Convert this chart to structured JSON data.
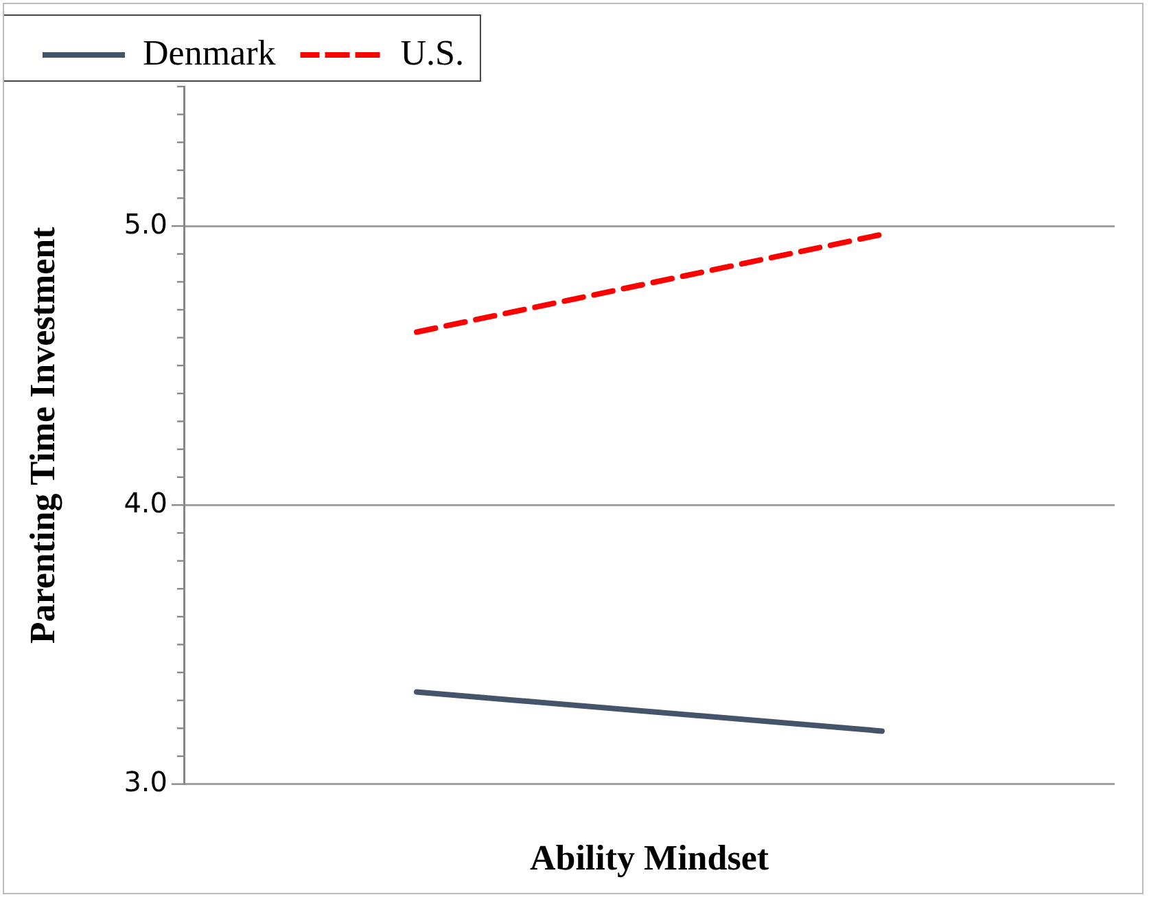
{
  "chart_data": {
    "type": "line",
    "xlabel": "Ability Mindset",
    "ylabel": "Parenting Time Investment",
    "categories": [
      null,
      null
    ],
    "series": [
      {
        "name": "Denmark",
        "color": "#44546a",
        "values": [
          3.33,
          3.19
        ],
        "line_style": "solid"
      },
      {
        "name": "U.S.",
        "color": "#ff0000",
        "values": [
          4.62,
          4.97
        ],
        "line_style": "dashed"
      }
    ],
    "ylim": [
      3,
      5.5
    ],
    "yticks": [
      {
        "value": 3,
        "label": "3.0"
      },
      {
        "value": 3.1,
        "label": null
      },
      {
        "value": 3.2,
        "label": null
      },
      {
        "value": 3.3,
        "label": null
      },
      {
        "value": 3.4,
        "label": null
      },
      {
        "value": 3.5,
        "label": null
      },
      {
        "value": 3.6,
        "label": null
      },
      {
        "value": 3.7,
        "label": null
      },
      {
        "value": 3.8,
        "label": null
      },
      {
        "value": 3.9,
        "label": null
      },
      {
        "value": 4,
        "label": "4.0"
      },
      {
        "value": 4.1,
        "label": null
      },
      {
        "value": 4.2,
        "label": null
      },
      {
        "value": 4.3,
        "label": null
      },
      {
        "value": 4.4,
        "label": null
      },
      {
        "value": 4.5,
        "label": null
      },
      {
        "value": 4.6,
        "label": null
      },
      {
        "value": 4.7,
        "label": null
      },
      {
        "value": 4.8,
        "label": null
      },
      {
        "value": 4.9,
        "label": null
      },
      {
        "value": 5,
        "label": "5.0"
      },
      {
        "value": 5.1,
        "label": null
      },
      {
        "value": 5.2,
        "label": null
      },
      {
        "value": 5.3,
        "label": null
      },
      {
        "value": 5.4,
        "label": null
      },
      {
        "value": 5.5,
        "label": null
      }
    ],
    "grid": "y",
    "legend": "top left",
    "marker": "none",
    "tick_labels": "y"
  }
}
